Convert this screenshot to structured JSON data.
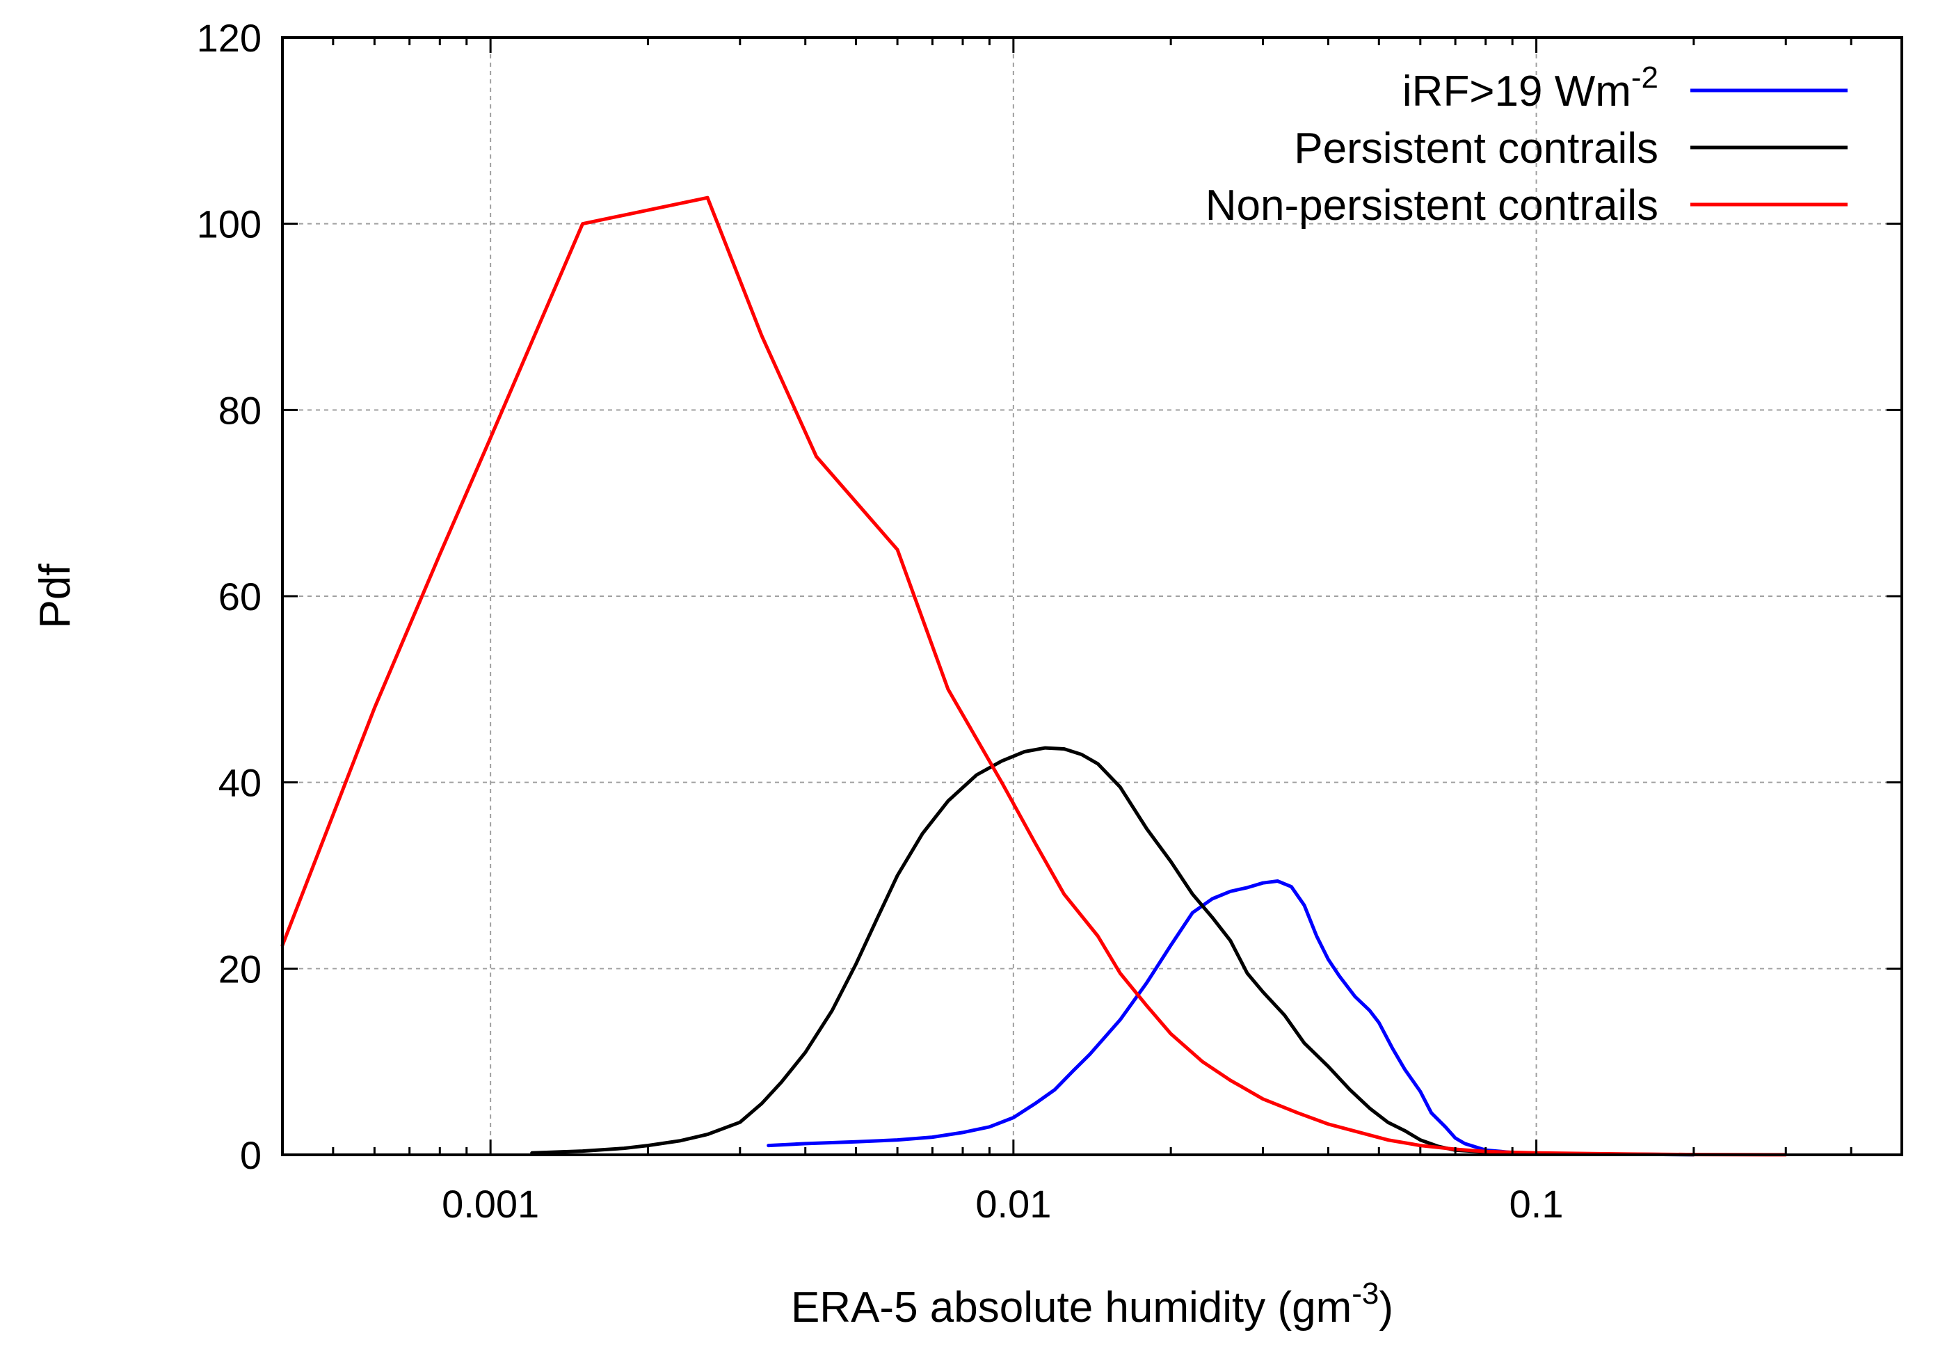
{
  "chart_data": {
    "type": "line",
    "xlabel": "ERA-5 absolute humidity (gm",
    "xlabel_sup": "-3",
    "xlabel_suffix": ")",
    "ylabel": "Pdf",
    "xscale": "log",
    "xlim": [
      0.0004,
      0.5
    ],
    "ylim": [
      0,
      120
    ],
    "grid": true,
    "legend_position": "top-right",
    "x_ticks": [
      {
        "value": 0.001,
        "label": "0.001"
      },
      {
        "value": 0.01,
        "label": "0.01"
      },
      {
        "value": 0.1,
        "label": "0.1"
      }
    ],
    "y_ticks": [
      {
        "value": 0,
        "label": "0"
      },
      {
        "value": 20,
        "label": "20"
      },
      {
        "value": 40,
        "label": "40"
      },
      {
        "value": 60,
        "label": "60"
      },
      {
        "value": 80,
        "label": "80"
      },
      {
        "value": 100,
        "label": "100"
      },
      {
        "value": 120,
        "label": "120"
      }
    ],
    "series": [
      {
        "name": "iRF>19 Wm",
        "name_sup": "-2",
        "color": "#0000ff",
        "points": [
          [
            0.0034,
            1.0
          ],
          [
            0.004,
            1.2
          ],
          [
            0.005,
            1.4
          ],
          [
            0.006,
            1.6
          ],
          [
            0.007,
            1.9
          ],
          [
            0.008,
            2.4
          ],
          [
            0.009,
            3.0
          ],
          [
            0.01,
            4.0
          ],
          [
            0.011,
            5.5
          ],
          [
            0.012,
            7.0
          ],
          [
            0.013,
            9.0
          ],
          [
            0.014,
            10.8
          ],
          [
            0.016,
            14.5
          ],
          [
            0.018,
            18.5
          ],
          [
            0.02,
            22.5
          ],
          [
            0.022,
            26.0
          ],
          [
            0.024,
            27.5
          ],
          [
            0.026,
            28.3
          ],
          [
            0.028,
            28.7
          ],
          [
            0.03,
            29.2
          ],
          [
            0.032,
            29.4
          ],
          [
            0.034,
            28.8
          ],
          [
            0.036,
            26.8
          ],
          [
            0.038,
            23.5
          ],
          [
            0.04,
            21.0
          ],
          [
            0.042,
            19.2
          ],
          [
            0.045,
            17.0
          ],
          [
            0.048,
            15.5
          ],
          [
            0.05,
            14.2
          ],
          [
            0.053,
            11.5
          ],
          [
            0.056,
            9.2
          ],
          [
            0.06,
            6.8
          ],
          [
            0.063,
            4.5
          ],
          [
            0.067,
            3.0
          ],
          [
            0.07,
            1.8
          ],
          [
            0.073,
            1.2
          ],
          [
            0.08,
            0.5
          ],
          [
            0.09,
            0.25
          ],
          [
            0.1,
            0.15
          ],
          [
            0.12,
            0.08
          ],
          [
            0.15,
            0.05
          ],
          [
            0.2,
            0.02
          ]
        ]
      },
      {
        "name": "Persistent contrails",
        "color": "#000000",
        "points": [
          [
            0.0012,
            0.2
          ],
          [
            0.0015,
            0.4
          ],
          [
            0.0018,
            0.7
          ],
          [
            0.002,
            1.0
          ],
          [
            0.0023,
            1.5
          ],
          [
            0.0026,
            2.2
          ],
          [
            0.003,
            3.5
          ],
          [
            0.0033,
            5.5
          ],
          [
            0.0036,
            7.8
          ],
          [
            0.004,
            11.0
          ],
          [
            0.0045,
            15.5
          ],
          [
            0.005,
            20.5
          ],
          [
            0.0055,
            25.5
          ],
          [
            0.006,
            30.0
          ],
          [
            0.0067,
            34.5
          ],
          [
            0.0075,
            38.0
          ],
          [
            0.0085,
            40.8
          ],
          [
            0.0095,
            42.3
          ],
          [
            0.0105,
            43.3
          ],
          [
            0.0115,
            43.7
          ],
          [
            0.0125,
            43.6
          ],
          [
            0.0135,
            43.0
          ],
          [
            0.0145,
            42.0
          ],
          [
            0.016,
            39.5
          ],
          [
            0.018,
            35.0
          ],
          [
            0.02,
            31.5
          ],
          [
            0.022,
            28.0
          ],
          [
            0.024,
            25.5
          ],
          [
            0.026,
            23.0
          ],
          [
            0.028,
            19.5
          ],
          [
            0.03,
            17.5
          ],
          [
            0.033,
            15.0
          ],
          [
            0.036,
            12.0
          ],
          [
            0.04,
            9.5
          ],
          [
            0.044,
            7.0
          ],
          [
            0.048,
            5.0
          ],
          [
            0.052,
            3.5
          ],
          [
            0.056,
            2.6
          ],
          [
            0.06,
            1.6
          ],
          [
            0.065,
            0.9
          ],
          [
            0.07,
            0.5
          ],
          [
            0.08,
            0.3
          ],
          [
            0.1,
            0.15
          ],
          [
            0.15,
            0.05
          ],
          [
            0.2,
            0.02
          ]
        ]
      },
      {
        "name": "Non-persistent contrails",
        "color": "#ff0000",
        "points": [
          [
            0.0004,
            22.5
          ],
          [
            0.0006,
            48.0
          ],
          [
            0.0008,
            64.5
          ],
          [
            0.001,
            77.0
          ],
          [
            0.0015,
            100.0
          ],
          [
            0.0026,
            102.8
          ],
          [
            0.0033,
            88.0
          ],
          [
            0.0042,
            75.0
          ],
          [
            0.006,
            65.0
          ],
          [
            0.0075,
            50.0
          ],
          [
            0.0095,
            40.0
          ],
          [
            0.011,
            33.5
          ],
          [
            0.0125,
            28.0
          ],
          [
            0.0145,
            23.5
          ],
          [
            0.016,
            19.5
          ],
          [
            0.018,
            16.0
          ],
          [
            0.02,
            13.0
          ],
          [
            0.023,
            10.0
          ],
          [
            0.026,
            8.0
          ],
          [
            0.03,
            6.0
          ],
          [
            0.035,
            4.5
          ],
          [
            0.04,
            3.3
          ],
          [
            0.046,
            2.4
          ],
          [
            0.052,
            1.6
          ],
          [
            0.06,
            1.0
          ],
          [
            0.07,
            0.6
          ],
          [
            0.08,
            0.35
          ],
          [
            0.1,
            0.2
          ],
          [
            0.15,
            0.08
          ],
          [
            0.2,
            0.03
          ],
          [
            0.3,
            0.01
          ]
        ]
      }
    ]
  }
}
